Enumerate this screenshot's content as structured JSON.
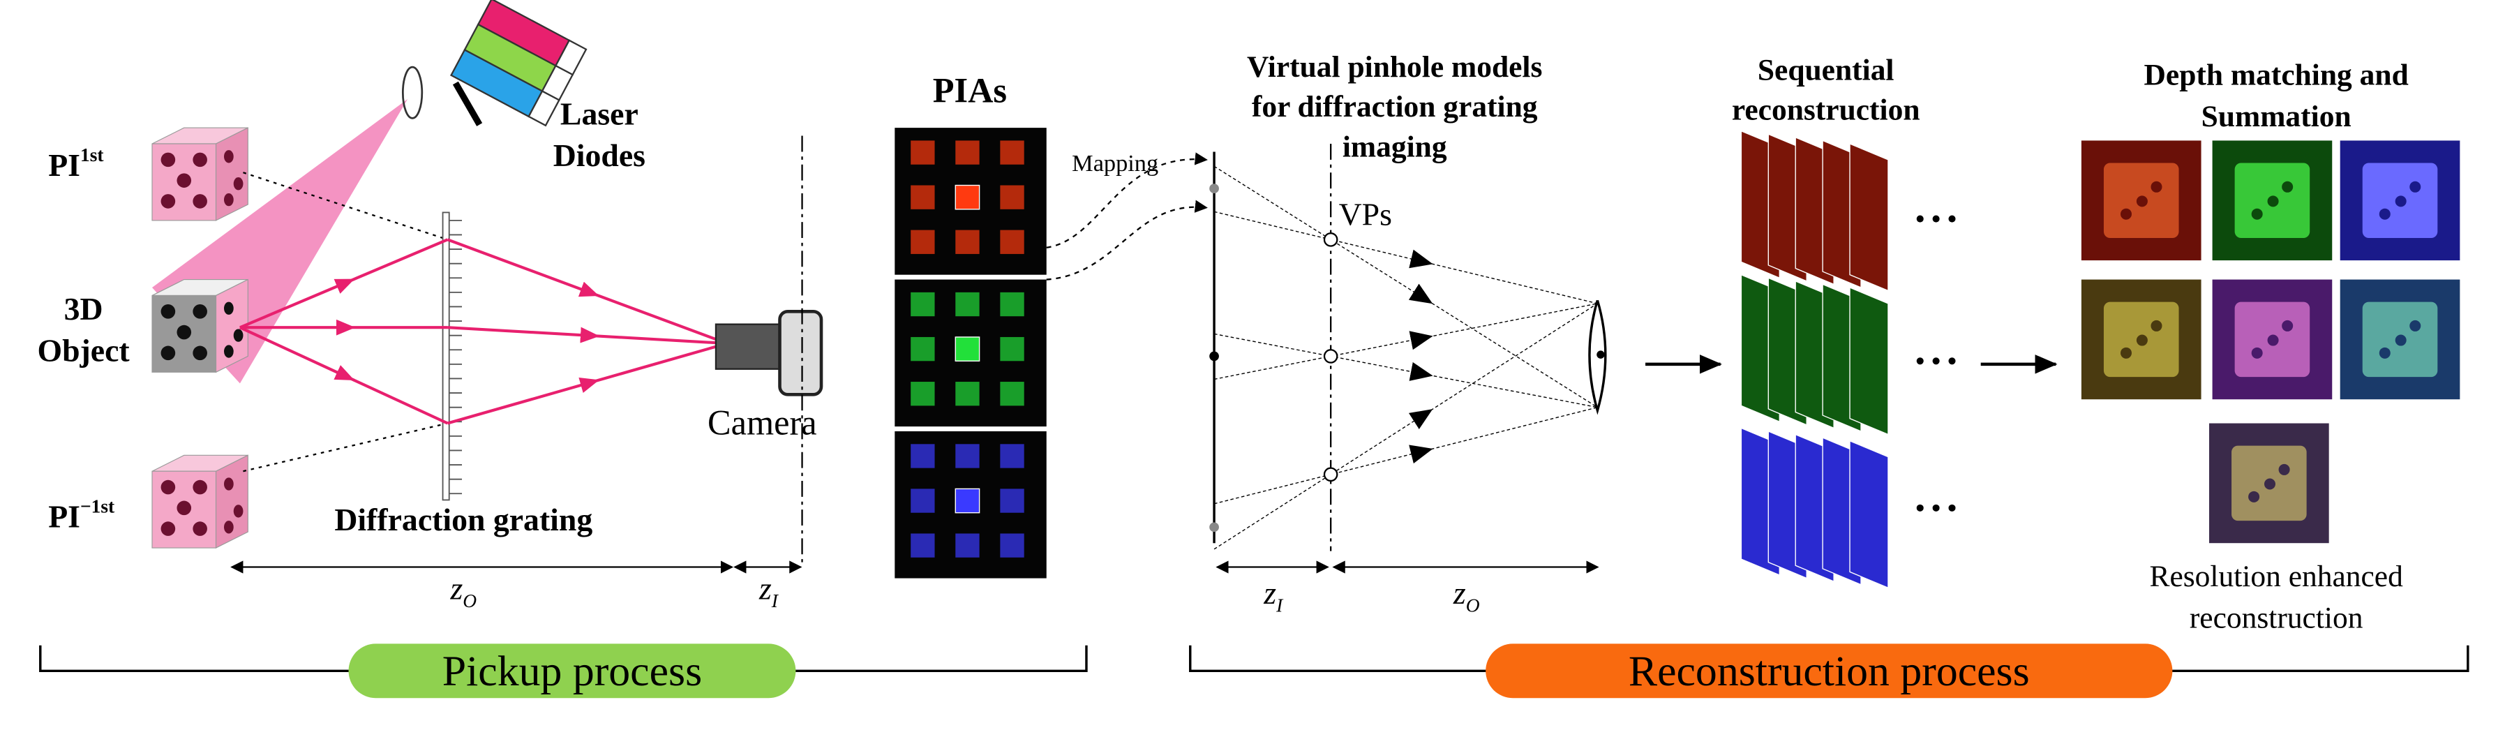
{
  "pickup": {
    "pi_first": {
      "base": "PI",
      "sup": "1st"
    },
    "object_label": [
      "3D",
      "Object"
    ],
    "pi_minus_first": {
      "base": "PI",
      "sup": "−1st"
    },
    "laser_label": [
      "Laser",
      "Diodes"
    ],
    "grating_label": "Diffraction grating",
    "camera_label": "Camera",
    "z_o": {
      "base": "z",
      "sub": "O"
    },
    "z_i": {
      "base": "z",
      "sub": "I"
    },
    "process_label": "Pickup process"
  },
  "pias": {
    "title": "PIAs",
    "mapping_label": "Mapping"
  },
  "pinhole": {
    "title": [
      "Virtual pinhole models",
      "for diffraction grating",
      "imaging"
    ],
    "vps_label": "VPs",
    "z_i": {
      "base": "z",
      "sub": "I"
    },
    "z_o": {
      "base": "z",
      "sub": "O"
    }
  },
  "sequential": {
    "title": [
      "Sequential",
      "reconstruction"
    ]
  },
  "summation": {
    "title": [
      "Depth matching and",
      "Summation"
    ],
    "caption": [
      "Resolution enhanced",
      "reconstruction"
    ]
  },
  "reconstruction": {
    "process_label": "Reconstruction process"
  }
}
